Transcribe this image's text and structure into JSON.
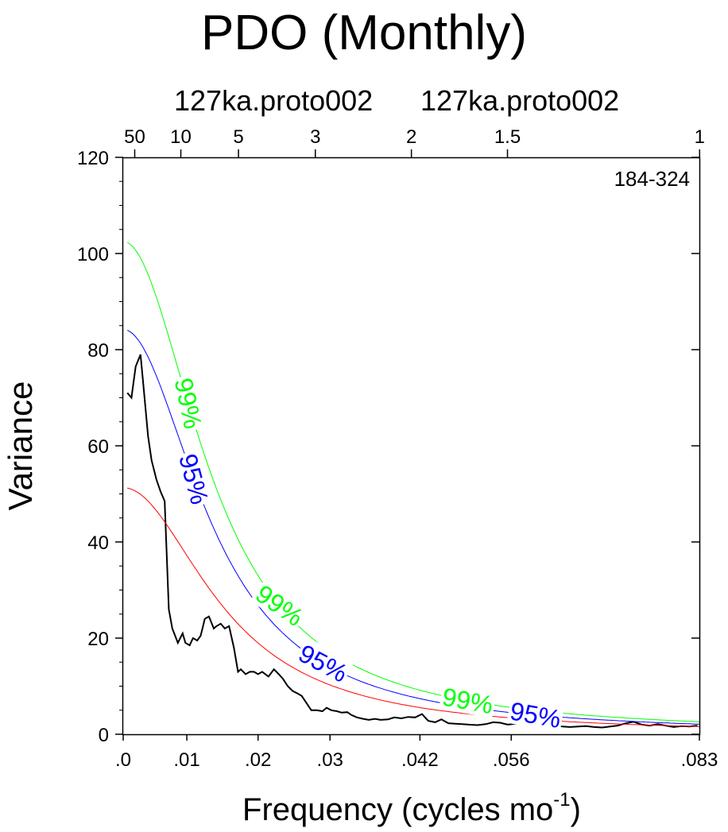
{
  "chart_data": {
    "type": "line",
    "title": "PDO (Monthly)",
    "subtitle_left": "127ka.proto002",
    "subtitle_right": "127ka.proto002",
    "annotation": "184-324",
    "xlabel": "Frequency (cycles mo",
    "xlabel_exponent": "-1",
    "xlabel_close": ")",
    "ylabel": "Variance",
    "xlim": [
      0,
      0.0833
    ],
    "ylim": [
      0,
      120
    ],
    "grid": false,
    "legend": "none",
    "x_tick_labels": [
      {
        "value": 0.0,
        "label": ".0"
      },
      {
        "value": 0.0092,
        "label": ".01"
      },
      {
        "value": 0.0195,
        "label": ".02"
      },
      {
        "value": 0.0299,
        "label": ".03"
      },
      {
        "value": 0.0429,
        "label": ".042"
      },
      {
        "value": 0.0561,
        "label": ".056"
      },
      {
        "value": 0.0833,
        "label": ".083"
      }
    ],
    "y_ticks": [
      0,
      20,
      40,
      60,
      80,
      100,
      120
    ],
    "period_axis": {
      "label_unit": "years",
      "ticks": [
        {
          "period": 50,
          "label": "50"
        },
        {
          "period": 10,
          "label": "10"
        },
        {
          "period": 5,
          "label": "5"
        },
        {
          "period": 3,
          "label": "3"
        },
        {
          "period": 2,
          "label": "2"
        },
        {
          "period": 1.5,
          "label": "1.5"
        },
        {
          "period": 1,
          "label": "1"
        }
      ]
    },
    "series": [
      {
        "color": "#000000",
        "x": [
          0.0006,
          0.0012,
          0.0018,
          0.0025,
          0.0029,
          0.0036,
          0.0041,
          0.0048,
          0.0054,
          0.006,
          0.0066,
          0.0071,
          0.0079,
          0.0086,
          0.009,
          0.0096,
          0.0101,
          0.0107,
          0.0112,
          0.0118,
          0.0124,
          0.0131,
          0.0135,
          0.0141,
          0.0147,
          0.0153,
          0.016,
          0.0166,
          0.017,
          0.0177,
          0.0183,
          0.0189,
          0.0195,
          0.0201,
          0.021,
          0.0218,
          0.0225,
          0.0231,
          0.0238,
          0.0245,
          0.0252,
          0.0258,
          0.0265,
          0.0272,
          0.028,
          0.0288,
          0.0294,
          0.0301,
          0.0309,
          0.0316,
          0.0324,
          0.033,
          0.0338,
          0.0347,
          0.0355,
          0.0364,
          0.0372,
          0.0383,
          0.0392,
          0.0402,
          0.0412,
          0.0422,
          0.0432,
          0.0441,
          0.0451,
          0.046,
          0.047,
          0.048,
          0.049,
          0.05,
          0.0512,
          0.0524,
          0.0535,
          0.0545,
          0.0556,
          0.0567,
          0.0577,
          0.0589,
          0.06,
          0.0612,
          0.0623,
          0.0635,
          0.0646,
          0.0658,
          0.0669,
          0.0681,
          0.0692,
          0.0704,
          0.0715,
          0.0727,
          0.0738,
          0.075,
          0.0761,
          0.0773,
          0.0784,
          0.0796,
          0.0807,
          0.0819,
          0.083
        ],
        "y": [
          71,
          70,
          76.5,
          79,
          73,
          62,
          57,
          53,
          50.5,
          48.5,
          26,
          22,
          19,
          21,
          19,
          18.5,
          20,
          19.5,
          20.5,
          24,
          24.5,
          22,
          22.5,
          23,
          22,
          22.5,
          18,
          13,
          13.5,
          12.5,
          13,
          13,
          12.5,
          13,
          12,
          13.5,
          12.5,
          11.5,
          10,
          9,
          8.5,
          8,
          6.5,
          5,
          5,
          4.8,
          5.5,
          5,
          4.8,
          4.5,
          4.6,
          4,
          3.5,
          3.2,
          3,
          3.2,
          3,
          3.1,
          3.5,
          3.3,
          3.6,
          3.5,
          4.2,
          2.8,
          2.5,
          3.1,
          2.3,
          2.2,
          2.1,
          2.0,
          1.9,
          2.1,
          2.5,
          2.4,
          2.0,
          2.2,
          2.1,
          1.8,
          1.7,
          1.8,
          1.9,
          1.6,
          1.5,
          1.6,
          1.7,
          1.5,
          1.4,
          1.6,
          1.8,
          2.3,
          2.6,
          2.0,
          1.8,
          2.1,
          1.8,
          1.5,
          1.7,
          1.6,
          1.8
        ]
      },
      {
        "color": "#ff0000",
        "function": "red_noise",
        "y0": 51.3,
        "y_end": 1.6
      },
      {
        "color": "#0000ff",
        "function": "red_noise",
        "y0": 84.2,
        "y_end": 2.1,
        "labels": [
          {
            "text": "95%",
            "x": 0.0102,
            "rotation": 75
          },
          {
            "text": "95%",
            "x": 0.0289,
            "rotation": 28
          },
          {
            "text": "95%",
            "x": 0.0596,
            "rotation": 10
          }
        ]
      },
      {
        "color": "#00ff00",
        "function": "red_noise",
        "y0": 102.5,
        "y_end": 2.6,
        "labels": [
          {
            "text": "99%",
            "x": 0.0094,
            "rotation": 78
          },
          {
            "text": "99%",
            "x": 0.0226,
            "rotation": 35
          },
          {
            "text": "99%",
            "x": 0.0498,
            "rotation": 10
          }
        ]
      }
    ]
  }
}
